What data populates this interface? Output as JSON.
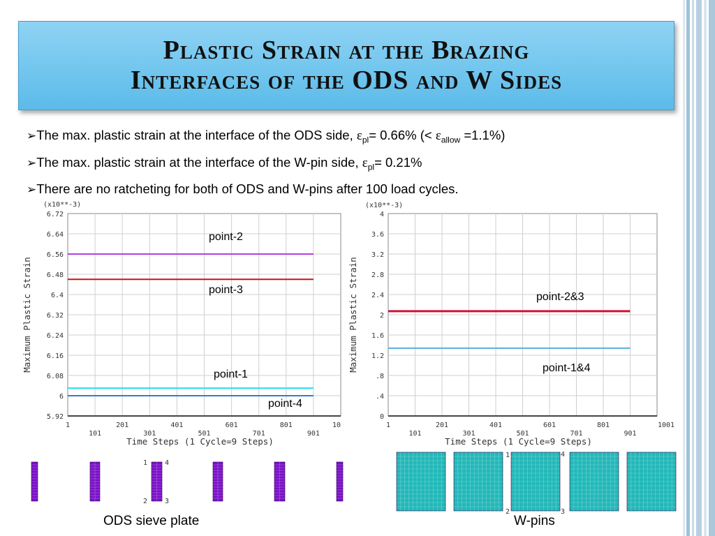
{
  "slide": {
    "title_line1": "Plastic Strain at the Brazing",
    "title_line2": "Interfaces of the ODS and W Sides",
    "bullets": [
      {
        "arrow": "➢",
        "text_a": "The max. plastic strain at the interface of the ODS side, ",
        "eps1": "ε",
        "sub1": "pl",
        "text_b": "= 0.66%  (< ",
        "eps2": "ε",
        "sub2": "allow",
        "text_c": " =1.1%)"
      },
      {
        "arrow": "➢",
        "text_a": "The max. plastic strain at the  interface of the W-pin side, ",
        "eps1": "ε",
        "sub1": "pl",
        "text_b": "= 0.21%"
      },
      {
        "arrow": "➢",
        "text_a": "There are no ratcheting for both of ODS and W-pins after 100 load cycles."
      }
    ],
    "caption_left": "ODS sieve plate",
    "caption_right": "W-pins",
    "mesh_node_labels": [
      "1",
      "4",
      "2",
      "3"
    ]
  },
  "colors": {
    "title_bg": "#6cc6ef",
    "point_2": "#b040e0",
    "point_3": "#cc1111",
    "point_1": "#22e0f0",
    "point_4": "#3a78d0",
    "w_point_2_3": "#d0103a",
    "w_point_1_4": "#55b0e0",
    "ods_mesh": "#7a10c8",
    "w_mesh": "#22b8b8"
  },
  "chart_data": [
    {
      "type": "line",
      "scale_note": "(x10**-3)",
      "xlabel": "Time Steps (1 Cycle=9 Steps)",
      "ylabel": "Maximum Plastic Strain",
      "xlim": [
        1,
        1001
      ],
      "ylim": [
        5.92,
        6.72
      ],
      "xticks_lower": [
        "1",
        "201",
        "401",
        "601",
        "801",
        "10"
      ],
      "xticks_upper": [
        "101",
        "301",
        "501",
        "701",
        "901"
      ],
      "yticks": [
        "5.92",
        "6",
        "6.08",
        "6.16",
        "6.24",
        "6.32",
        "6.4",
        "6.48",
        "6.56",
        "6.64",
        "6.72"
      ],
      "grid": true,
      "series": [
        {
          "name": "point-2",
          "color": "#b040e0",
          "x": [
            1,
            901
          ],
          "y": [
            6.56,
            6.56
          ]
        },
        {
          "name": "point-3",
          "color": "#cc1111",
          "x": [
            1,
            901
          ],
          "y": [
            6.46,
            6.46
          ]
        },
        {
          "name": "point-1",
          "color": "#22e0f0",
          "x": [
            1,
            901
          ],
          "y": [
            6.03,
            6.03
          ]
        },
        {
          "name": "point-4",
          "color": "#3a78d0",
          "x": [
            1,
            901
          ],
          "y": [
            6.0,
            6.0
          ]
        }
      ]
    },
    {
      "type": "line",
      "scale_note": "(x10**-3)",
      "xlabel": "Time Steps (1 Cycle=9 Steps)",
      "ylabel": "Maximum Plastic Strain",
      "xlim": [
        1,
        1001
      ],
      "ylim": [
        0,
        4
      ],
      "xticks_lower": [
        "1",
        "201",
        "401",
        "601",
        "801",
        "1001"
      ],
      "xticks_upper": [
        "101",
        "301",
        "501",
        "701",
        "901"
      ],
      "yticks": [
        "0",
        ".4",
        ".8",
        "1.2",
        "1.6",
        "2",
        "2.4",
        "2.8",
        "3.2",
        "3.6",
        "4"
      ],
      "grid": true,
      "series": [
        {
          "name": "point-2&3",
          "color": "#d0103a",
          "x": [
            1,
            901
          ],
          "y": [
            2.07,
            2.07
          ]
        },
        {
          "name": "point-1&4",
          "color": "#55b0e0",
          "x": [
            1,
            901
          ],
          "y": [
            1.34,
            1.34
          ]
        }
      ]
    }
  ]
}
